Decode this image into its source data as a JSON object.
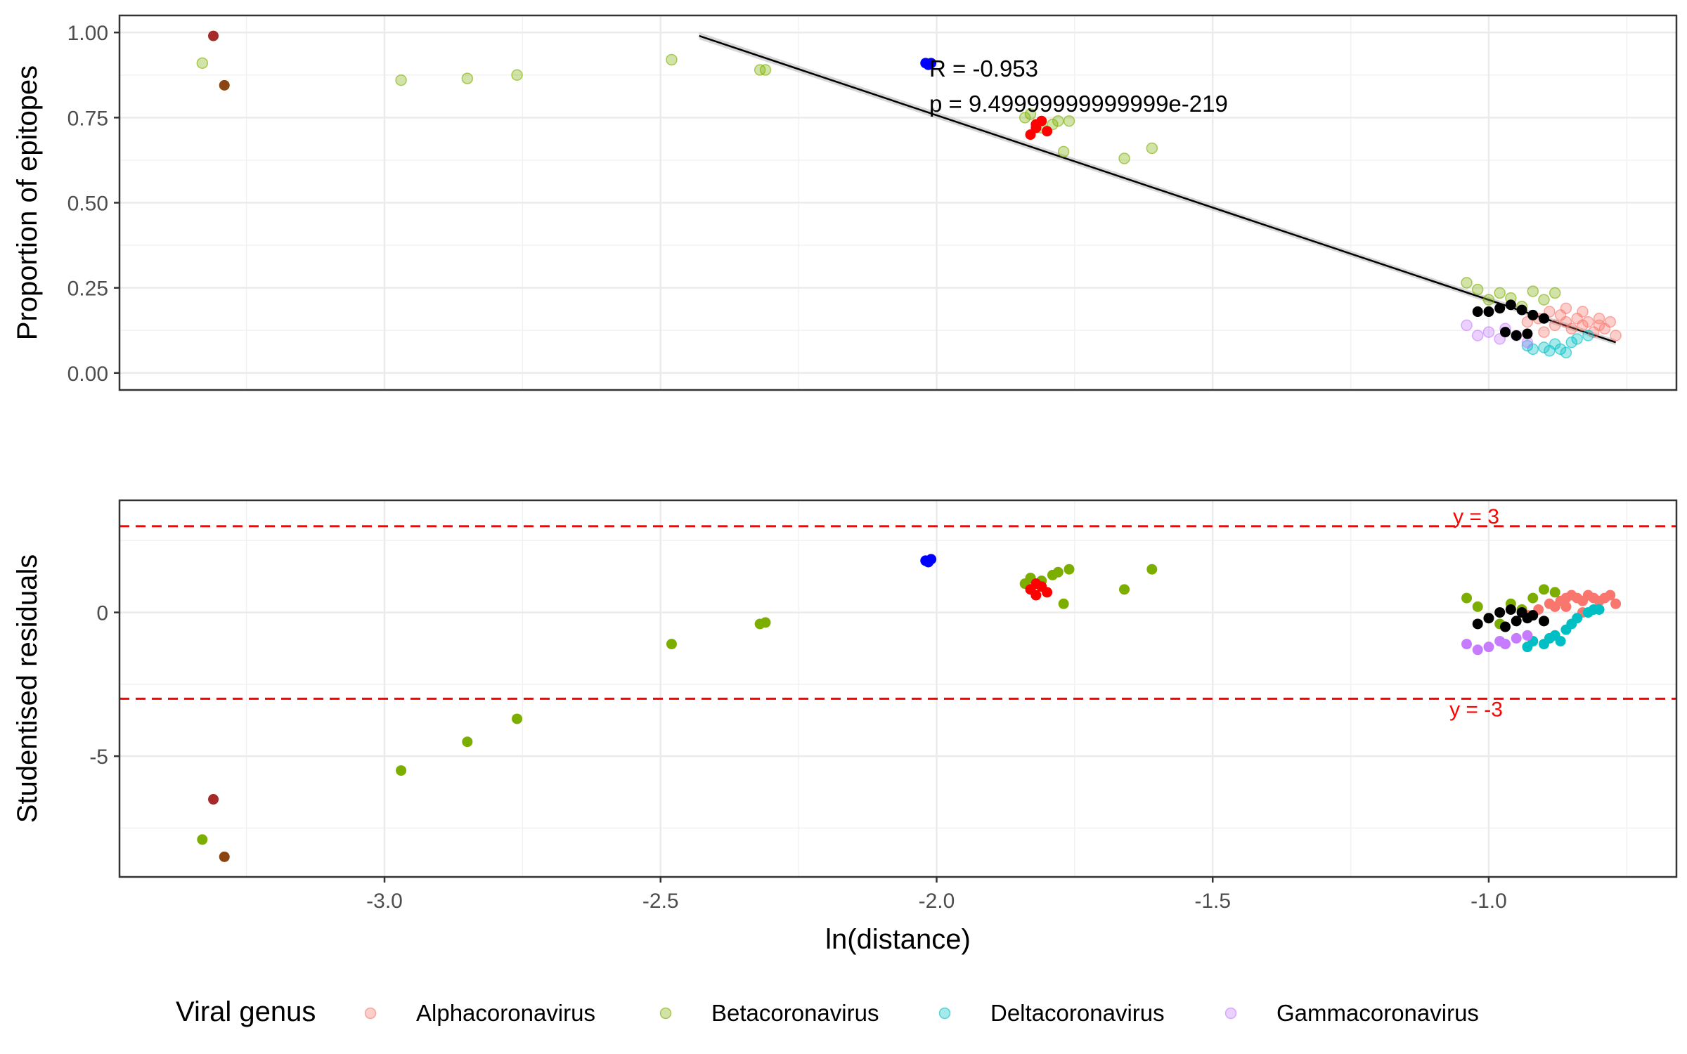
{
  "chart_data": [
    {
      "type": "scatter",
      "xlabel": "",
      "ylabel": "Proportion of epitopes",
      "xlim": [
        -3.48,
        -0.66
      ],
      "ylim": [
        -0.05,
        1.05
      ],
      "xticks": [
        -3.0,
        -2.5,
        -2.0,
        -1.5,
        -1.0
      ],
      "yticks": [
        0.0,
        0.25,
        0.5,
        0.75,
        1.0
      ],
      "ytick_labels": [
        "0.00",
        "0.25",
        "0.50",
        "0.75",
        "1.00"
      ],
      "grid": true,
      "annotations": [
        "R = -0.953",
        "p = 9.49999999999999e-219"
      ],
      "regression_line": {
        "x": [
          -2.43,
          -0.77
        ],
        "y": [
          0.99,
          0.09
        ]
      },
      "series": [
        {
          "name": "Alphacoronavirus",
          "color": "#F8766D",
          "x": [
            -0.93,
            -0.91,
            -0.89,
            -0.88,
            -0.87,
            -0.86,
            -0.85,
            -0.84,
            -0.83,
            -0.82,
            -0.81,
            -0.8,
            -0.79,
            -0.78,
            -0.77,
            -0.9,
            -0.86,
            -0.83,
            -0.8
          ],
          "y": [
            0.15,
            0.16,
            0.18,
            0.14,
            0.17,
            0.15,
            0.13,
            0.16,
            0.14,
            0.15,
            0.12,
            0.14,
            0.13,
            0.15,
            0.11,
            0.12,
            0.19,
            0.18,
            0.16
          ]
        },
        {
          "name": "Betacoronavirus",
          "color": "#7CAE00",
          "x": [
            -3.33,
            -2.97,
            -2.85,
            -2.76,
            -2.48,
            -2.32,
            -2.31,
            -1.84,
            -1.83,
            -1.81,
            -1.79,
            -1.78,
            -1.77,
            -1.76,
            -1.66,
            -1.61,
            -1.04,
            -1.02,
            -1.0,
            -0.98,
            -0.96,
            -0.94,
            -0.92,
            -0.9,
            -0.88
          ],
          "y": [
            0.91,
            0.86,
            0.865,
            0.875,
            0.92,
            0.89,
            0.89,
            0.75,
            0.76,
            0.72,
            0.73,
            0.74,
            0.65,
            0.74,
            0.63,
            0.66,
            0.265,
            0.245,
            0.215,
            0.235,
            0.22,
            0.195,
            0.24,
            0.215,
            0.235
          ]
        },
        {
          "name": "Deltacoronavirus",
          "color": "#00BFC4",
          "x": [
            -0.93,
            -0.92,
            -0.9,
            -0.89,
            -0.88,
            -0.87,
            -0.86,
            -0.85,
            -0.84,
            -0.82
          ],
          "y": [
            0.08,
            0.07,
            0.075,
            0.065,
            0.085,
            0.07,
            0.06,
            0.09,
            0.1,
            0.11
          ]
        },
        {
          "name": "Gammacoronavirus",
          "color": "#C77CFF",
          "x": [
            -1.04,
            -1.02,
            -1.0,
            -0.98,
            -0.97,
            -0.95,
            -0.93
          ],
          "y": [
            0.14,
            0.11,
            0.12,
            0.1,
            0.13,
            0.11,
            0.09
          ]
        },
        {
          "name": "",
          "color": "#0000FF",
          "x": [
            -2.02,
            -2.01,
            -2.015
          ],
          "y": [
            0.91,
            0.91,
            0.905
          ]
        },
        {
          "name": "",
          "color": "#FF0000",
          "x": [
            -1.83,
            -1.82,
            -1.81,
            -1.8,
            -1.82
          ],
          "y": [
            0.7,
            0.73,
            0.74,
            0.71,
            0.72
          ]
        },
        {
          "name": "",
          "color": "#000000",
          "x": [
            -1.02,
            -1.0,
            -0.98,
            -0.96,
            -0.94,
            -0.92,
            -0.9,
            -0.97,
            -0.95,
            -0.93
          ],
          "y": [
            0.18,
            0.18,
            0.19,
            0.2,
            0.185,
            0.17,
            0.16,
            0.12,
            0.11,
            0.115
          ]
        },
        {
          "name": "",
          "color": "#A52A2A",
          "x": [
            -3.31
          ],
          "y": [
            0.99
          ]
        },
        {
          "name": "",
          "color": "#8B4513",
          "x": [
            -3.29
          ],
          "y": [
            0.845
          ]
        }
      ]
    },
    {
      "type": "scatter",
      "xlabel": "ln(distance)",
      "ylabel": "Studentised residuals",
      "xlim": [
        -3.48,
        -0.66
      ],
      "ylim": [
        -9.2,
        3.9
      ],
      "xticks": [
        -3.0,
        -2.5,
        -2.0,
        -1.5,
        -1.0
      ],
      "xtick_labels": [
        "-3.0",
        "-2.5",
        "-2.0",
        "-1.5",
        "-1.0"
      ],
      "yticks": [
        -5,
        0
      ],
      "ytick_labels": [
        "-5",
        "0"
      ],
      "grid": true,
      "reference_lines": [
        {
          "y": 3,
          "label": "y = 3",
          "color": "#FF0000"
        },
        {
          "y": -3,
          "label": "y = -3",
          "color": "#FF0000"
        }
      ],
      "series": [
        {
          "name": "Alphacoronavirus",
          "color": "#F8766D",
          "x": [
            -0.93,
            -0.91,
            -0.89,
            -0.88,
            -0.87,
            -0.86,
            -0.85,
            -0.84,
            -0.83,
            -0.82,
            -0.81,
            -0.8,
            -0.79,
            -0.78,
            -0.77,
            -0.9,
            -0.86,
            -0.83
          ],
          "y": [
            -0.1,
            0.1,
            0.3,
            0.2,
            0.4,
            0.5,
            0.6,
            0.5,
            0.4,
            0.6,
            0.5,
            0.4,
            0.5,
            0.6,
            0.3,
            -0.3,
            0.2,
            0.0
          ]
        },
        {
          "name": "Betacoronavirus",
          "color": "#7CAE00",
          "x": [
            -3.33,
            -2.97,
            -2.85,
            -2.76,
            -2.48,
            -2.32,
            -2.31,
            -1.84,
            -1.83,
            -1.81,
            -1.79,
            -1.78,
            -1.77,
            -1.76,
            -1.66,
            -1.61,
            -1.04,
            -1.02,
            -1.0,
            -0.98,
            -0.96,
            -0.94,
            -0.92,
            -0.9,
            -0.88
          ],
          "y": [
            -7.9,
            -5.5,
            -4.5,
            -3.7,
            -1.1,
            -0.4,
            -0.35,
            1.0,
            1.2,
            1.1,
            1.3,
            1.4,
            0.3,
            1.5,
            0.8,
            1.5,
            0.5,
            0.2,
            -0.2,
            -0.4,
            0.3,
            0.1,
            0.5,
            0.8,
            0.7
          ]
        },
        {
          "name": "Deltacoronavirus",
          "color": "#00BFC4",
          "x": [
            -0.93,
            -0.92,
            -0.9,
            -0.89,
            -0.88,
            -0.87,
            -0.86,
            -0.85,
            -0.84,
            -0.82,
            -0.81,
            -0.8
          ],
          "y": [
            -1.2,
            -1.0,
            -1.1,
            -0.9,
            -0.8,
            -1.0,
            -0.6,
            -0.4,
            -0.2,
            0.0,
            0.1,
            0.1
          ]
        },
        {
          "name": "Gammacoronavirus",
          "color": "#C77CFF",
          "x": [
            -1.04,
            -1.02,
            -1.0,
            -0.98,
            -0.97,
            -0.95,
            -0.93
          ],
          "y": [
            -1.1,
            -1.3,
            -1.2,
            -1.0,
            -1.1,
            -0.9,
            -0.8
          ]
        },
        {
          "name": "",
          "color": "#0000FF",
          "x": [
            -2.02,
            -2.01,
            -2.015
          ],
          "y": [
            1.8,
            1.85,
            1.75
          ]
        },
        {
          "name": "",
          "color": "#FF0000",
          "x": [
            -1.83,
            -1.82,
            -1.81,
            -1.8,
            -1.82
          ],
          "y": [
            0.8,
            1.0,
            0.9,
            0.7,
            0.6
          ]
        },
        {
          "name": "",
          "color": "#000000",
          "x": [
            -1.02,
            -1.0,
            -0.98,
            -0.96,
            -0.94,
            -0.92,
            -0.9,
            -0.97,
            -0.95,
            -0.93
          ],
          "y": [
            -0.4,
            -0.2,
            0.0,
            0.1,
            0.0,
            -0.1,
            -0.3,
            -0.5,
            -0.3,
            -0.2
          ]
        },
        {
          "name": "",
          "color": "#A52A2A",
          "x": [
            -3.31
          ],
          "y": [
            -6.5
          ]
        },
        {
          "name": "",
          "color": "#8B4513",
          "x": [
            -3.29
          ],
          "y": [
            -8.5
          ]
        }
      ]
    }
  ],
  "legend": {
    "title": "Viral genus",
    "position": "bottom",
    "items": [
      {
        "label": "Alphacoronavirus",
        "color": "#F8766D"
      },
      {
        "label": "Betacoronavirus",
        "color": "#7CAE00"
      },
      {
        "label": "Deltacoronavirus",
        "color": "#00BFC4"
      },
      {
        "label": "Gammacoronavirus",
        "color": "#C77CFF"
      }
    ]
  }
}
